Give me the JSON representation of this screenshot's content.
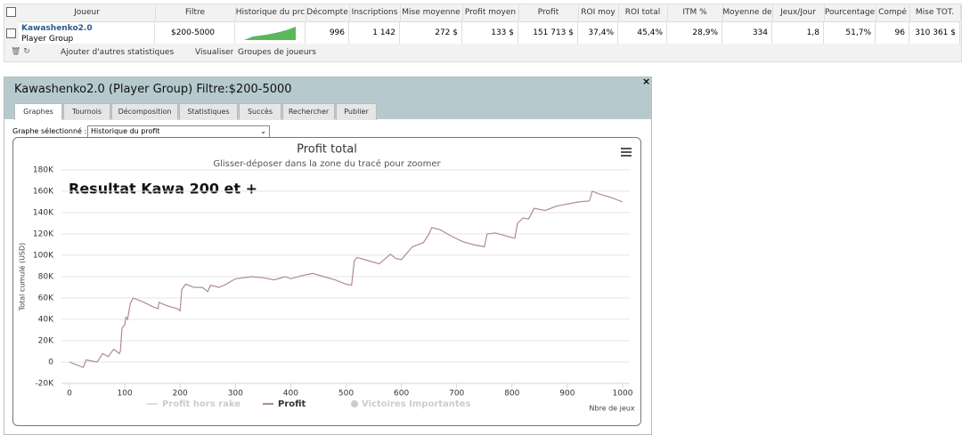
{
  "table": {
    "headers": [
      "Joueur",
      "Filtre",
      "Historique du prc",
      "Décompte",
      "Inscriptions",
      "Mise moyenne",
      "Profit moyen",
      "Profit",
      "ROI moy",
      "ROI total",
      "ITM %",
      "Moyenne de",
      "Jeux/Jour",
      "Pourcentage",
      "Compé",
      "Mise TOT."
    ],
    "row": {
      "player": "Kawashenko2.0",
      "group": "Player Group",
      "cells": [
        "$200-5000",
        "996",
        "1 142",
        "272 $",
        "133 $",
        "151 713 $",
        "37,4%",
        "45,4%",
        "28,9%",
        "334",
        "1,8",
        "51,7%",
        "96",
        "310 361 $"
      ]
    }
  },
  "toolbar": [
    "Ajouter d'autres statistiques",
    "Visualiser",
    "Groupes de joueurs"
  ],
  "panel": {
    "title": "Kawashenko2.0 (Player Group) Filtre:$200-5000",
    "tabs": [
      "Graphes",
      "Tournois",
      "Décomposition",
      "Statistiques",
      "Succès",
      "Rechercher",
      "Publier"
    ],
    "select_label": "Graphe sélectionné :",
    "select_value": "Historique du profit"
  },
  "chart_data": {
    "type": "line",
    "title": "Profit total",
    "subtitle": "Glisser-déposer dans la zone du tracé pour zoomer",
    "annotation": "Resultat Kawa 200 et +",
    "y_label": "Total cumulé (USD)",
    "x_label": "Nbre de jeux",
    "x": [
      0,
      10,
      25,
      30,
      50,
      60,
      70,
      80,
      90,
      92,
      95,
      100,
      102,
      105,
      110,
      115,
      130,
      150,
      160,
      162,
      175,
      195,
      200,
      203,
      210,
      225,
      240,
      250,
      255,
      270,
      280,
      300,
      330,
      350,
      370,
      390,
      400,
      420,
      440,
      460,
      480,
      500,
      510,
      515,
      520,
      540,
      560,
      580,
      590,
      600,
      620,
      640,
      650,
      655,
      670,
      690,
      710,
      730,
      750,
      755,
      770,
      790,
      805,
      810,
      820,
      830,
      840,
      860,
      880,
      900,
      920,
      940,
      945,
      960,
      980,
      1000
    ],
    "series": [
      {
        "name": "Profit",
        "color": "#b08c8c",
        "values": [
          0,
          -2000,
          -5000,
          2000,
          0,
          8000,
          5000,
          12000,
          8000,
          10000,
          32000,
          35000,
          42000,
          40000,
          55000,
          60000,
          57000,
          52000,
          50000,
          56000,
          53000,
          50000,
          48000,
          68000,
          73000,
          70000,
          70000,
          66000,
          72000,
          70000,
          72000,
          78000,
          80000,
          79000,
          77000,
          80000,
          78000,
          81000,
          83000,
          80000,
          77000,
          73000,
          72000,
          95000,
          98000,
          95000,
          92000,
          101000,
          97000,
          96000,
          108000,
          112000,
          120000,
          126000,
          124000,
          118000,
          113000,
          110000,
          108000,
          120000,
          121000,
          118000,
          116000,
          130000,
          135000,
          134000,
          144000,
          142000,
          146000,
          148000,
          150000,
          151000,
          160000,
          157000,
          154000,
          150000
        ]
      }
    ],
    "hidden_series": [
      {
        "name": "Profit hors rake"
      },
      {
        "name": "Victoires Importantes"
      }
    ],
    "xlim": [
      0,
      1000
    ],
    "xticks": [
      0,
      100,
      200,
      300,
      400,
      500,
      600,
      700,
      800,
      900,
      1000
    ],
    "ylim": [
      -20000,
      180000
    ],
    "yticks": [
      {
        "value": -20000,
        "label": "-20K"
      },
      0,
      {
        "value": 20000,
        "label": "20K"
      },
      {
        "value": 40000,
        "label": "40K"
      },
      {
        "value": 60000,
        "label": "60K"
      },
      {
        "value": 80000,
        "label": "80K"
      },
      {
        "value": 100000,
        "label": "100K"
      },
      {
        "value": 120000,
        "label": "120K"
      },
      {
        "value": 140000,
        "label": "140K"
      },
      {
        "value": 160000,
        "label": "160K"
      },
      {
        "value": 180000,
        "label": "180K"
      }
    ],
    "grid": true
  }
}
